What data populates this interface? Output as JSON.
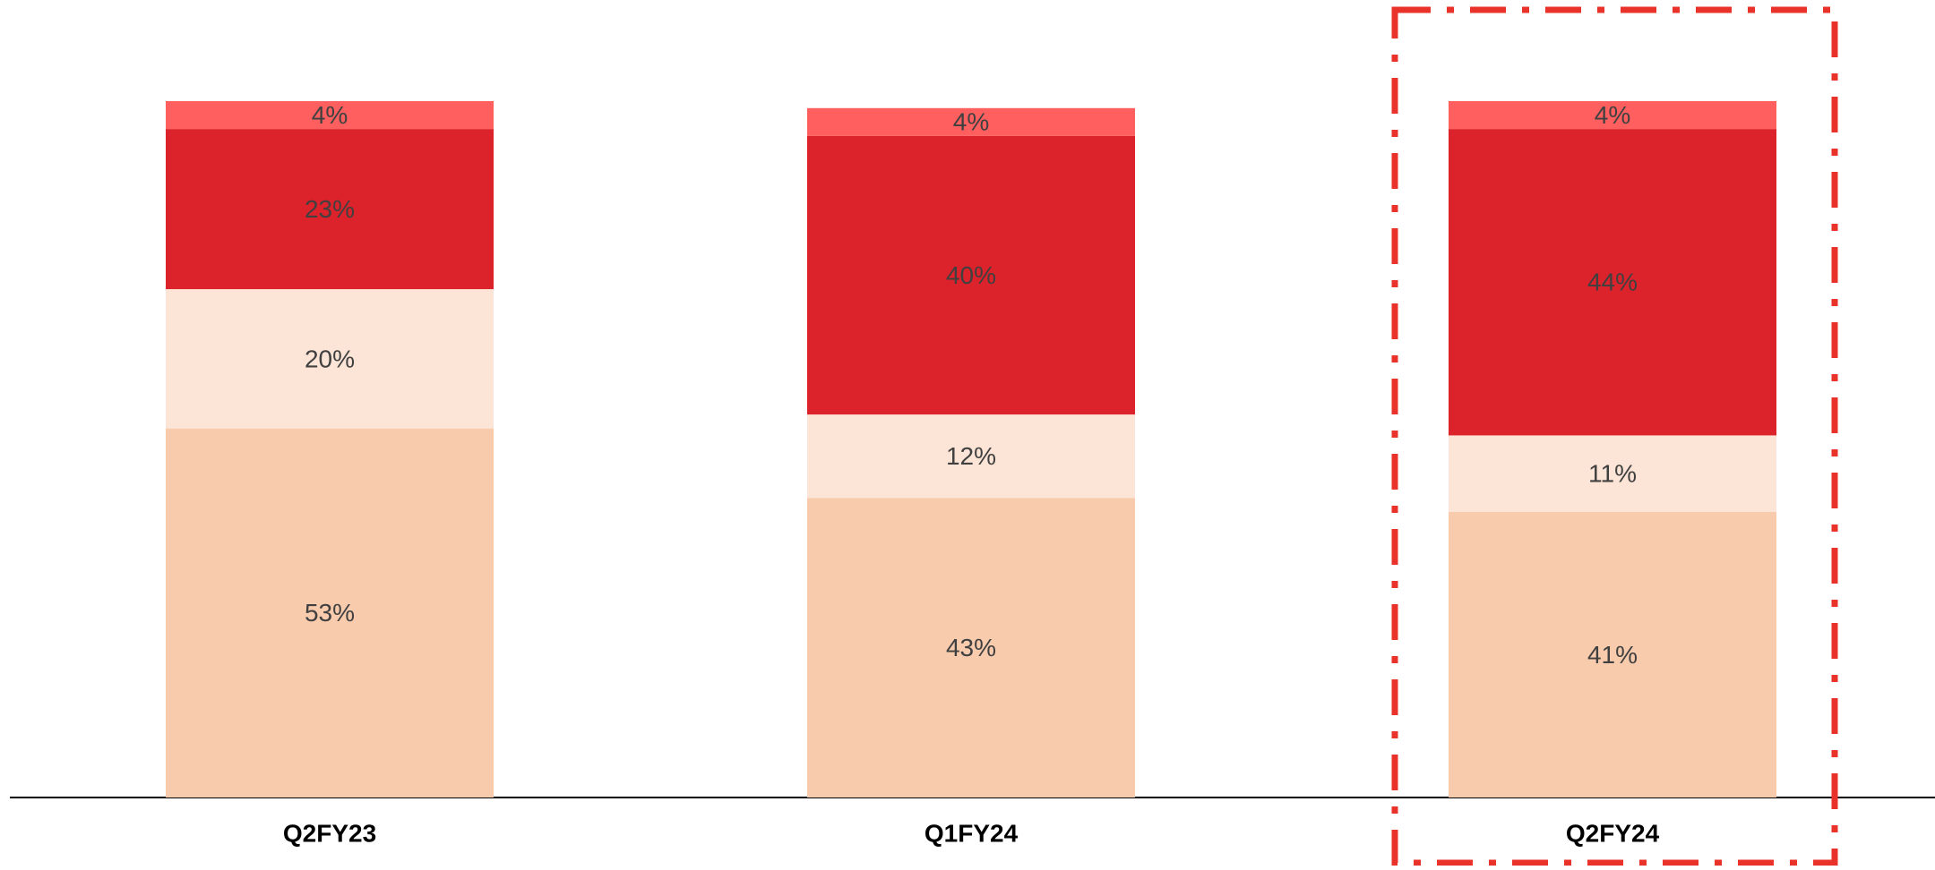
{
  "chart_data": {
    "type": "stacked_bar",
    "categories": [
      "Q2FY23",
      "Q1FY24",
      "Q2FY24"
    ],
    "series": [
      {
        "color": "#F8CBAD",
        "values": [
          53,
          43,
          41
        ],
        "value_labels": [
          "53%",
          "43%",
          "41%"
        ]
      },
      {
        "color": "#FCE4D6",
        "values": [
          20,
          12,
          11
        ],
        "value_labels": [
          "20%",
          "12%",
          "11%"
        ]
      },
      {
        "color": "#DC222B",
        "values": [
          23,
          40,
          44
        ],
        "value_labels": [
          "23%",
          "40%",
          "44%"
        ]
      },
      {
        "color": "#FF5F5F",
        "values": [
          4,
          4,
          4
        ],
        "value_labels": [
          "4%",
          "4%",
          "4%"
        ]
      }
    ],
    "ylim": [
      0,
      100
    ]
  }
}
